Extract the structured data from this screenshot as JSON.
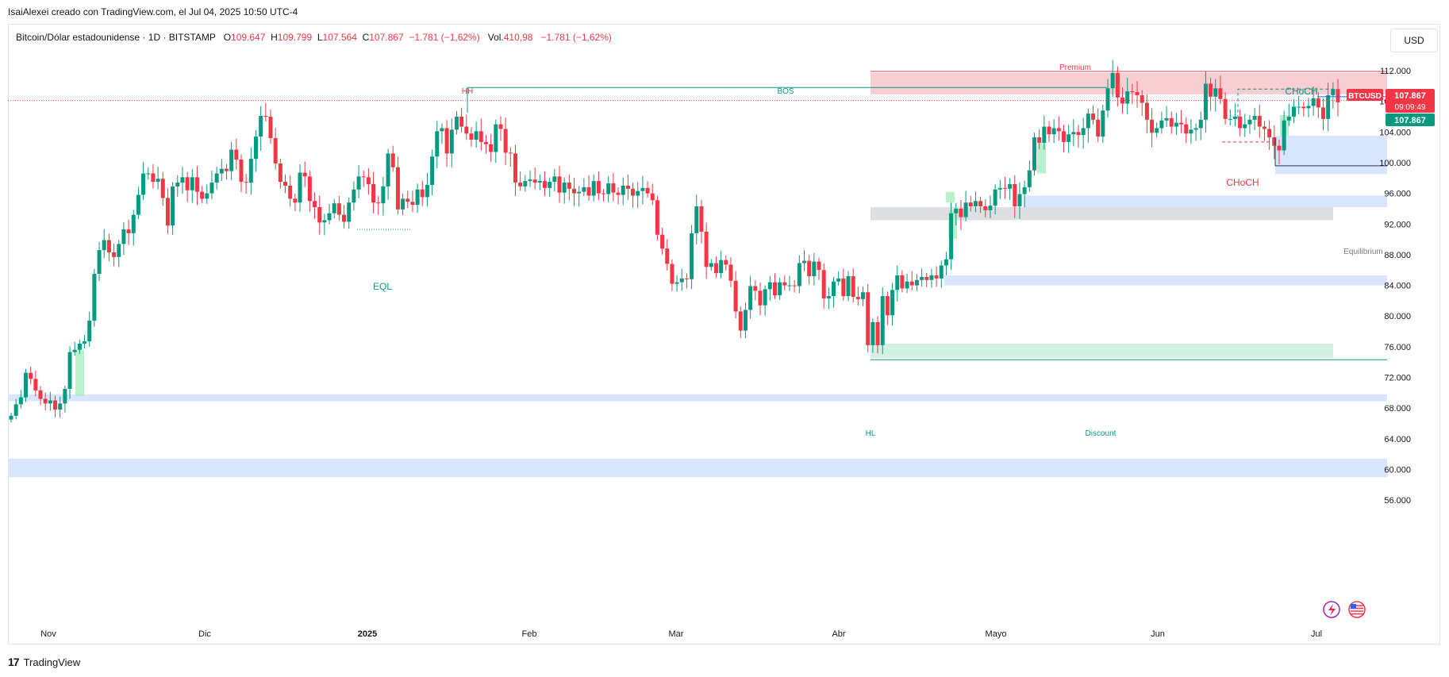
{
  "header": {
    "attribution": "IsaiAlexei creado con TradingView.com, el Jul 04, 2025 10:50 UTC-4"
  },
  "legend": {
    "symbol_desc": "Bitcoin/Dólar estadounidense · 1D · BITSTAMP",
    "o_label": "O",
    "o_value": "109.647",
    "h_label": "H",
    "h_value": "109.799",
    "l_label": "L",
    "l_value": "107.564",
    "c_label": "C",
    "c_value": "107.867",
    "change": "−1.781 (−1,62%)",
    "vol_label": "Vol.",
    "vol_value": "410,98",
    "vol_change": "−1.781 (−1,62%)"
  },
  "currency_button": "USD",
  "footer": {
    "brand": "TradingView",
    "logo_glyph": "17"
  },
  "colors": {
    "up": "#089981",
    "down": "#f23645",
    "premium_fill": "#f7c6cb",
    "discount_fill": "#cdeee2",
    "equilibrium_fill": "#d8d9dd",
    "ob_blue": "#d6e4fd",
    "fvg_green": "#a8ecc0",
    "structure_green": "#089981",
    "structure_red": "#f23645",
    "axis_text": "#131722"
  },
  "chart_data": {
    "type": "candlestick",
    "symbol": "BTCUSD",
    "timeframe": "1D",
    "exchange": "BITSTAMP",
    "y_axis": {
      "ticks": [
        "112.000",
        "108.000",
        "104.000",
        "100.000",
        "96.000",
        "92.000",
        "88.000",
        "84.000",
        "80.000",
        "76.000",
        "72.000",
        "68.000",
        "64.000",
        "60.000",
        "56.000"
      ],
      "ylim": [
        52000,
        114000
      ]
    },
    "x_axis": {
      "ticks": [
        "Nov",
        "Dic",
        "2025",
        "Feb",
        "Mar",
        "Abr",
        "Mayo",
        "Jun",
        "Jul"
      ]
    },
    "last_price": {
      "symbol_label": "BTCUSD",
      "price": "107.867",
      "countdown": "09:09:49",
      "secondary_price": "107.867"
    },
    "closes": [
      67000,
      68500,
      69400,
      72600,
      71800,
      70300,
      69200,
      68600,
      69000,
      67800,
      68600,
      70500,
      75300,
      75600,
      76400,
      76700,
      79400,
      85500,
      88600,
      89900,
      88300,
      87700,
      89400,
      91300,
      90800,
      93200,
      95800,
      98600,
      98600,
      97500,
      97900,
      95400,
      91800,
      96900,
      97400,
      98100,
      96400,
      98100,
      96200,
      95300,
      96000,
      97400,
      98600,
      99200,
      98900,
      101700,
      100400,
      97500,
      97400,
      100500,
      103400,
      106100,
      106000,
      103200,
      99900,
      97500,
      97000,
      95300,
      94800,
      98700,
      98200,
      95000,
      94200,
      92200,
      92500,
      93400,
      94700,
      93200,
      92300,
      94800,
      96500,
      98200,
      98100,
      97200,
      94800,
      94700,
      96900,
      101200,
      99400,
      93900,
      95300,
      94900,
      94500,
      96500,
      95500,
      97100,
      100800,
      104100,
      104500,
      101200,
      104300,
      106000,
      104700,
      103800,
      103000,
      104100,
      102700,
      102400,
      101400,
      105000,
      104400,
      101300,
      101200,
      97400,
      96900,
      97600,
      97800,
      97400,
      97600,
      96700,
      97500,
      98200,
      96100,
      97400,
      96600,
      96000,
      96200,
      96800,
      95700,
      97600,
      96000,
      95900,
      97300,
      96100,
      95800,
      97000,
      96600,
      95700,
      96300,
      96700,
      96000,
      95100,
      90600,
      88800,
      86800,
      84200,
      84400,
      84900,
      84800,
      90800,
      94300,
      91000,
      86400,
      86900,
      85600,
      87300,
      86700,
      84600,
      80600,
      78100,
      80800,
      83900,
      83300,
      81400,
      83500,
      84400,
      82700,
      84400,
      84000,
      84000,
      83900,
      86900,
      87200,
      85200,
      87100,
      86000,
      82300,
      82600,
      84500,
      84900,
      82600,
      85200,
      82500,
      82200,
      83100,
      76200,
      79200,
      76200,
      82600,
      80100,
      83400,
      85300,
      83600,
      84500,
      84000,
      84700,
      85100,
      84700,
      85300,
      84900,
      86600,
      87400,
      93400,
      94000,
      92900,
      94800,
      94300,
      95000,
      94300,
      93800,
      94400,
      96500,
      96700,
      96600,
      97200,
      94300,
      95900,
      96800,
      99000,
      103300,
      102600,
      104700,
      103700,
      104500,
      104100,
      102700,
      103700,
      104000,
      103600,
      104500,
      106400,
      105600,
      103400,
      106800,
      109700,
      111700,
      108500,
      107700,
      109300,
      109200,
      108800,
      107800,
      105600,
      103900,
      104500,
      105500,
      105800,
      104700,
      105200,
      105000,
      103800,
      104300,
      104500,
      105600,
      110300,
      108600,
      109700,
      108300,
      105700,
      105700,
      106000,
      104500,
      105000,
      105600,
      106100,
      104700,
      104400,
      103300,
      102200,
      101600,
      105500,
      106000,
      107300,
      107300,
      107100,
      107400,
      108400,
      107200,
      105700,
      108800,
      109600,
      107867
    ],
    "annotations": [
      {
        "type": "label",
        "text": "HH",
        "color": "#f23645"
      },
      {
        "type": "label",
        "text": "BOS",
        "color": "#089981"
      },
      {
        "type": "label",
        "text": "Premium",
        "color": "#f23645"
      },
      {
        "type": "label",
        "text": "CHoCH",
        "color": "#089981"
      },
      {
        "type": "label",
        "text": "CHoCH",
        "color": "#f23645"
      },
      {
        "type": "label",
        "text": "EQL",
        "color": "#089981"
      },
      {
        "type": "label",
        "text": "Equilibrium",
        "color": "#787b86"
      },
      {
        "type": "label",
        "text": "HL",
        "color": "#089981"
      },
      {
        "type": "label",
        "text": "Discount",
        "color": "#089981"
      }
    ],
    "zones": [
      {
        "name": "premium",
        "from": 108900,
        "to": 111700
      },
      {
        "name": "discount",
        "from": 74500,
        "to": 76400
      },
      {
        "name": "equilibrium",
        "from": 92500,
        "to": 94200
      },
      {
        "name": "order-block",
        "from": 98500,
        "to": 103500
      },
      {
        "name": "order-block",
        "from": 94200,
        "to": 95700
      },
      {
        "name": "order-block",
        "from": 84000,
        "to": 85300
      },
      {
        "name": "order-block",
        "from": 68900,
        "to": 69800
      },
      {
        "name": "order-block",
        "from": 59000,
        "to": 61400
      }
    ],
    "grid": false,
    "legend": "top-left"
  }
}
